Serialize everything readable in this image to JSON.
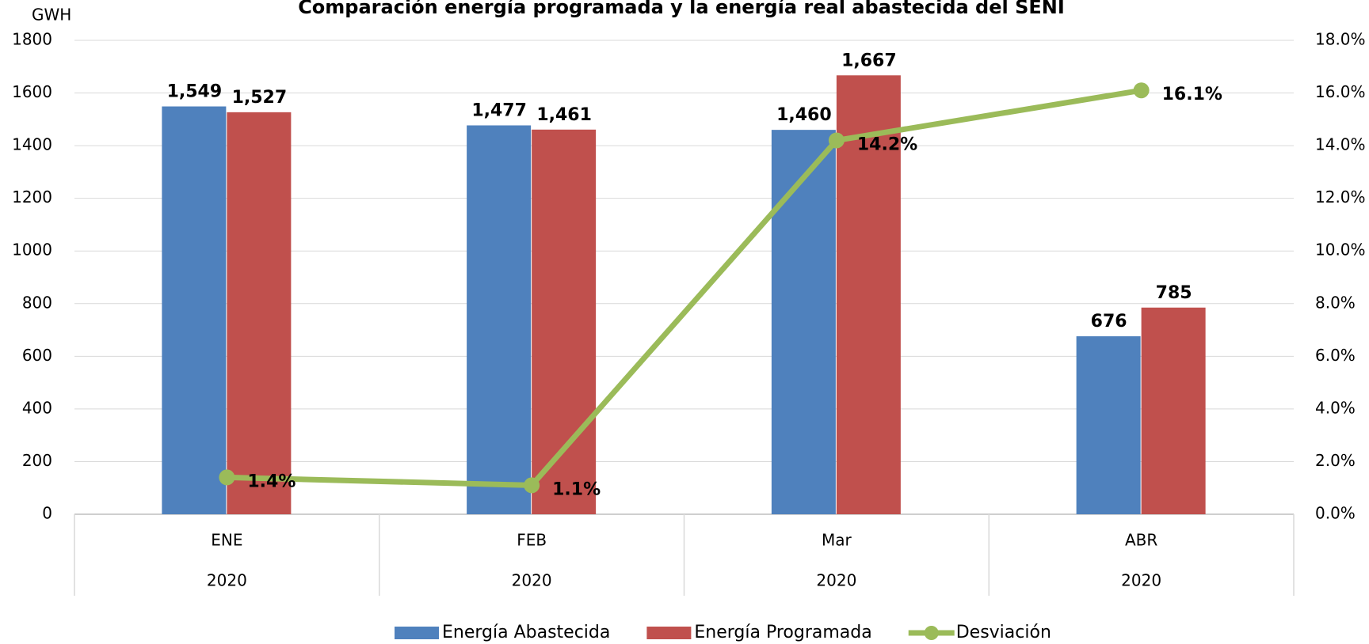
{
  "chart_data": {
    "type": "bar",
    "title": "Comparación energía programada y la energía real abastecida del SENI",
    "y_label": "GWH",
    "categories": [
      "ENE",
      "FEB",
      "Mar",
      "ABR"
    ],
    "category_groups": [
      "2020",
      "2020",
      "2020",
      "2020"
    ],
    "series": [
      {
        "name": "Energía Abastecida",
        "color": "#4f81bd",
        "values": [
          1549,
          1477,
          1460,
          676
        ],
        "value_labels": [
          "1,549",
          "1,477",
          "1,460",
          "676"
        ]
      },
      {
        "name": "Energía Programada",
        "color": "#c0504d",
        "values": [
          1527,
          1461,
          1667,
          785
        ],
        "value_labels": [
          "1,527",
          "1,461",
          "1,667",
          "785"
        ]
      },
      {
        "name": "Desviación",
        "type": "line",
        "axis": "y2",
        "color": "#9bbb59",
        "values": [
          1.4,
          1.1,
          14.2,
          16.1
        ],
        "value_labels": [
          "1.4%",
          "1.1%",
          "14.2%",
          "16.1%"
        ]
      }
    ],
    "ylim": [
      0,
      1800
    ],
    "yticks": [
      0,
      200,
      400,
      600,
      800,
      1000,
      1200,
      1400,
      1600,
      1800
    ],
    "y2lim": [
      0,
      18
    ],
    "y2ticks": [
      {
        "value": 0,
        "label": "0.0%"
      },
      {
        "value": 2,
        "label": "2.0%"
      },
      {
        "value": 4,
        "label": "4.0%"
      },
      {
        "value": 6,
        "label": "6.0%"
      },
      {
        "value": 8,
        "label": "8.0%"
      },
      {
        "value": 10,
        "label": "10.0%"
      },
      {
        "value": 12,
        "label": "12.0%"
      },
      {
        "value": 14,
        "label": "14.0%"
      },
      {
        "value": 16,
        "label": "16.0%"
      },
      {
        "value": 18,
        "label": "18.0%"
      }
    ],
    "grid": true,
    "legend": "bottom"
  }
}
